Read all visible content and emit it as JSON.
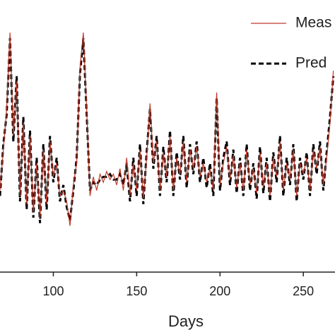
{
  "chart_data": {
    "type": "line",
    "xlabel": "Days",
    "x": [
      68,
      70,
      72,
      74,
      76,
      78,
      80,
      82,
      84,
      86,
      88,
      90,
      92,
      94,
      96,
      98,
      100,
      102,
      104,
      106,
      108,
      110,
      112,
      114,
      116,
      118,
      120,
      122,
      124,
      126,
      128,
      130,
      132,
      134,
      136,
      138,
      140,
      142,
      144,
      146,
      148,
      150,
      152,
      154,
      156,
      158,
      160,
      162,
      164,
      166,
      168,
      170,
      172,
      174,
      176,
      178,
      180,
      182,
      184,
      186,
      188,
      190,
      192,
      194,
      196,
      198,
      200,
      202,
      204,
      206,
      208,
      210,
      212,
      214,
      216,
      218,
      220,
      222,
      224,
      226,
      228,
      230,
      232,
      234,
      236,
      238,
      240,
      242,
      244,
      246,
      248,
      250,
      252,
      254,
      256,
      258,
      260,
      262,
      264,
      266,
      268
    ],
    "series": [
      {
        "name": "Meas",
        "color": "#c0392b",
        "dash": false,
        "values": [
          30,
          45,
          60,
          88,
          50,
          70,
          28,
          55,
          25,
          50,
          22,
          40,
          20,
          45,
          25,
          48,
          35,
          40,
          28,
          30,
          26,
          17,
          32,
          40,
          75,
          88,
          60,
          28,
          35,
          30,
          36,
          33,
          37,
          34,
          36,
          32,
          38,
          30,
          42,
          28,
          40,
          30,
          45,
          27,
          42,
          62,
          40,
          48,
          30,
          44,
          35,
          50,
          30,
          42,
          36,
          48,
          33,
          45,
          38,
          46,
          35,
          40,
          33,
          38,
          30,
          66,
          32,
          40,
          46,
          34,
          43,
          31,
          40,
          30,
          45,
          32,
          38,
          29,
          44,
          31,
          40,
          28,
          42,
          35,
          48,
          30,
          40,
          34,
          45,
          28,
          40,
          36,
          42,
          30,
          45,
          38,
          46,
          32,
          42,
          55,
          74
        ]
      },
      {
        "name": "Pred",
        "color": "#000000",
        "dash": true,
        "values": [
          28,
          47,
          58,
          86,
          48,
          72,
          26,
          57,
          23,
          52,
          20,
          42,
          18,
          47,
          23,
          50,
          33,
          42,
          26,
          32,
          24,
          19,
          30,
          42,
          73,
          86,
          58,
          30,
          33,
          32,
          34,
          35,
          35,
          36,
          34,
          34,
          36,
          32,
          40,
          26,
          42,
          28,
          47,
          25,
          44,
          60,
          38,
          50,
          28,
          46,
          33,
          52,
          28,
          44,
          34,
          50,
          31,
          47,
          36,
          48,
          33,
          42,
          31,
          40,
          28,
          64,
          30,
          42,
          48,
          32,
          45,
          29,
          42,
          28,
          47,
          30,
          40,
          27,
          46,
          29,
          42,
          26,
          44,
          33,
          50,
          28,
          42,
          32,
          47,
          26,
          42,
          34,
          44,
          28,
          47,
          36,
          48,
          30,
          44,
          57,
          72
        ]
      }
    ],
    "xlim": [
      68,
      269
    ],
    "xticks": [
      100,
      150,
      200,
      250
    ],
    "ylim": [
      0,
      100
    ]
  }
}
